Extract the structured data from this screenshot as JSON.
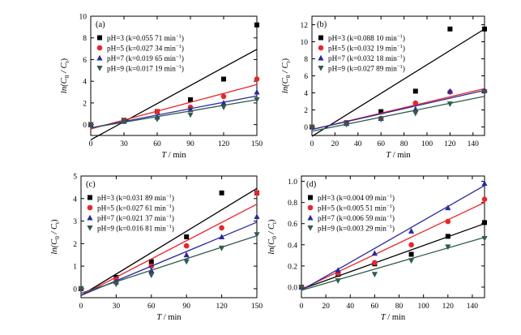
{
  "figure": {
    "y_label_main": "ln(C",
    "y_label_sub0": "0",
    "y_label_mid": " / C",
    "y_label_sub1": "t",
    "y_label_end": ")",
    "x_label_italic": "T",
    "x_label_rest": " / min"
  },
  "colors": {
    "black": "#000000",
    "red": "#e8262a",
    "blue": "#2a2a9a",
    "green": "#2f5d4a"
  },
  "chart_data": [
    {
      "type": "scatter",
      "panel": "(a)",
      "xlim": [
        0,
        150
      ],
      "ylim": [
        -1,
        10
      ],
      "x_ticks": [
        "0",
        "30",
        "60",
        "90",
        "120",
        "150"
      ],
      "y_ticks": [
        "0",
        "2",
        "4",
        "6",
        "8",
        "10"
      ],
      "x": [
        0,
        30,
        60,
        90,
        120,
        150
      ],
      "legend_position": "upper-left",
      "series": [
        {
          "name": "pH=3 (k=0.055 71 min",
          "symbol": "square",
          "color": "black",
          "values": [
            0,
            0.4,
            1.2,
            2.3,
            4.2,
            9.2
          ],
          "fit": [
            -1.4,
            6.95
          ]
        },
        {
          "name": "pH=5 (k=0.027 34 min",
          "symbol": "circle",
          "color": "red",
          "values": [
            0,
            0.4,
            1.2,
            1.6,
            2.6,
            4.2
          ],
          "fit": [
            -0.4,
            3.7
          ]
        },
        {
          "name": "pH=7 (k=0.019 65 min",
          "symbol": "triangle-up",
          "color": "blue",
          "values": [
            0,
            0.3,
            0.7,
            1.4,
            2.0,
            3.0
          ],
          "fit": [
            -0.3,
            2.65
          ]
        },
        {
          "name": "pH=9 (k=0.017 19 min",
          "symbol": "triangle-down",
          "color": "green",
          "values": [
            0,
            0.3,
            0.5,
            0.9,
            1.6,
            2.3
          ],
          "fit": [
            -0.3,
            2.3
          ]
        }
      ]
    },
    {
      "type": "scatter",
      "panel": "(b)",
      "xlim": [
        0,
        150
      ],
      "ylim": [
        -1,
        13
      ],
      "x_ticks": [
        "0",
        "20",
        "40",
        "60",
        "80",
        "100",
        "120",
        "140"
      ],
      "y_ticks": [
        "0",
        "2",
        "4",
        "6",
        "8",
        "10",
        "12"
      ],
      "x": [
        0,
        30,
        60,
        90,
        120,
        150
      ],
      "legend_position": "upper-left",
      "series": [
        {
          "name": "pH=3 (k=0.088 10 min",
          "symbol": "square",
          "color": "black",
          "values": [
            0,
            0.5,
            1.8,
            4.2,
            11.5,
            11.5
          ],
          "fit": [
            -1.1,
            11.5
          ]
        },
        {
          "name": "pH=5 (k=0.032 19 min",
          "symbol": "circle",
          "color": "red",
          "values": [
            0,
            0.5,
            1.0,
            2.8,
            4.1,
            4.2
          ],
          "fit": [
            -0.3,
            4.5
          ]
        },
        {
          "name": "pH=7 (k=0.032 18 min",
          "symbol": "triangle-up",
          "color": "blue",
          "values": [
            0,
            0.4,
            1.0,
            2.1,
            4.2,
            4.3
          ],
          "fit": [
            -0.3,
            4.3
          ]
        },
        {
          "name": "pH=9 (k=0.027 89 min",
          "symbol": "triangle-down",
          "color": "green",
          "values": [
            0,
            0.3,
            0.9,
            1.6,
            2.7,
            4.1
          ],
          "fit": [
            -0.5,
            3.6
          ]
        }
      ]
    },
    {
      "type": "scatter",
      "panel": "(c)",
      "xlim": [
        0,
        150
      ],
      "ylim": [
        -0.4,
        5
      ],
      "x_ticks": [
        "0",
        "30",
        "60",
        "90",
        "120",
        "150"
      ],
      "y_ticks": [
        "0",
        "1",
        "2",
        "3",
        "4",
        "5"
      ],
      "x": [
        0,
        30,
        60,
        90,
        120,
        150
      ],
      "legend_position": "upper-left",
      "series": [
        {
          "name": "pH=3 (k=0.031 89 min",
          "symbol": "square",
          "color": "black",
          "values": [
            0,
            0.5,
            1.2,
            2.3,
            4.25,
            4.25
          ],
          "fit": [
            -0.3,
            4.45
          ]
        },
        {
          "name": "pH=5 (k=0.027 61 min",
          "symbol": "circle",
          "color": "red",
          "values": [
            0,
            0.4,
            1.0,
            1.9,
            2.7,
            4.25
          ],
          "fit": [
            -0.3,
            3.75
          ]
        },
        {
          "name": "pH=7 (k=0.021 37 min",
          "symbol": "triangle-up",
          "color": "blue",
          "values": [
            0,
            0.3,
            0.8,
            1.5,
            2.3,
            3.2
          ],
          "fit": [
            -0.3,
            2.95
          ]
        },
        {
          "name": "pH=9 (k=0.016 81 min",
          "symbol": "triangle-down",
          "color": "green",
          "values": [
            0,
            0.2,
            0.6,
            1.2,
            1.8,
            2.4
          ],
          "fit": [
            -0.2,
            2.35
          ]
        }
      ]
    },
    {
      "type": "scatter",
      "panel": "(d)",
      "xlim": [
        0,
        150
      ],
      "ylim": [
        -0.1,
        1.05
      ],
      "x_ticks": [
        "0",
        "20",
        "40",
        "60",
        "80",
        "100",
        "120",
        "140"
      ],
      "y_ticks": [
        "0.0",
        "0.2",
        "0.4",
        "0.6",
        "0.8",
        "1.0"
      ],
      "x": [
        0,
        30,
        60,
        90,
        120,
        150
      ],
      "legend_position": "upper-left",
      "series": [
        {
          "name": "pH=3 (k=0.004 09 min",
          "symbol": "square",
          "color": "black",
          "values": [
            0,
            0.12,
            0.22,
            0.31,
            0.48,
            0.61
          ],
          "fit": [
            -0.02,
            0.6
          ]
        },
        {
          "name": "pH=5 (k=0.005 51 min",
          "symbol": "circle",
          "color": "red",
          "values": [
            0,
            0.13,
            0.23,
            0.4,
            0.62,
            0.83
          ],
          "fit": [
            -0.02,
            0.8
          ]
        },
        {
          "name": "pH=7 (k=0.006 59 min",
          "symbol": "triangle-up",
          "color": "blue",
          "values": [
            0,
            0.16,
            0.32,
            0.53,
            0.75,
            0.98
          ],
          "fit": [
            -0.03,
            0.96
          ]
        },
        {
          "name": "pH=9 (k=0.003 29 min",
          "symbol": "triangle-down",
          "color": "green",
          "values": [
            0,
            0.06,
            0.12,
            0.25,
            0.38,
            0.46
          ],
          "fit": [
            -0.03,
            0.47
          ]
        }
      ]
    }
  ]
}
